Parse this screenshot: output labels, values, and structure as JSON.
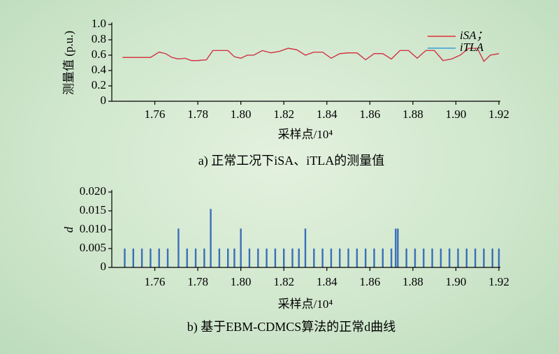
{
  "chart_data": [
    {
      "type": "line",
      "ylabel": "测量值 (p.u.)",
      "xlabel": "采样点/10⁴",
      "caption": "a) 正常工况下iSA、iTLA的测量值",
      "xlim": [
        1.74,
        1.92
      ],
      "ylim": [
        0,
        1
      ],
      "xticks": [
        1.76,
        1.78,
        {
          "value": 1.8,
          "label": "1.80"
        },
        1.82,
        1.84,
        1.86,
        1.88,
        {
          "value": 1.9,
          "label": "1.90"
        },
        1.92
      ],
      "yticks": [
        0,
        0.2,
        0.4,
        0.6,
        0.8,
        {
          "value": 1,
          "label": "1.0"
        }
      ],
      "legend": "upper right",
      "x": [
        1.745,
        1.75,
        1.755,
        1.758,
        1.762,
        1.765,
        1.768,
        1.771,
        1.774,
        1.777,
        1.78,
        1.784,
        1.787,
        1.79,
        1.794,
        1.797,
        1.8,
        1.803,
        1.806,
        1.81,
        1.814,
        1.818,
        1.822,
        1.826,
        1.83,
        1.834,
        1.838,
        1.842,
        1.846,
        1.85,
        1.854,
        1.858,
        1.862,
        1.866,
        1.87,
        1.874,
        1.878,
        1.882,
        1.886,
        1.89,
        1.894,
        1.898,
        1.902,
        1.906,
        1.91,
        1.913,
        1.916,
        1.92
      ],
      "series": [
        {
          "name": "iSA；",
          "color": "#e0303a",
          "values": [
            0.57,
            0.57,
            0.57,
            0.57,
            0.64,
            0.62,
            0.57,
            0.55,
            0.56,
            0.53,
            0.53,
            0.54,
            0.66,
            0.66,
            0.66,
            0.58,
            0.56,
            0.6,
            0.6,
            0.66,
            0.63,
            0.65,
            0.69,
            0.67,
            0.6,
            0.64,
            0.64,
            0.56,
            0.62,
            0.63,
            0.63,
            0.54,
            0.62,
            0.62,
            0.55,
            0.66,
            0.66,
            0.56,
            0.66,
            0.66,
            0.53,
            0.55,
            0.6,
            0.69,
            0.69,
            0.52,
            0.6,
            0.62
          ]
        },
        {
          "name": "iTLA",
          "color": "#3aa0d8",
          "values": [
            0.57,
            0.57,
            0.57,
            0.57,
            0.64,
            0.62,
            0.57,
            0.55,
            0.56,
            0.53,
            0.53,
            0.54,
            0.66,
            0.66,
            0.66,
            0.58,
            0.56,
            0.6,
            0.6,
            0.66,
            0.63,
            0.65,
            0.69,
            0.67,
            0.6,
            0.64,
            0.64,
            0.56,
            0.62,
            0.63,
            0.63,
            0.54,
            0.62,
            0.62,
            0.55,
            0.66,
            0.66,
            0.56,
            0.66,
            0.66,
            0.53,
            0.55,
            0.6,
            0.69,
            0.69,
            0.52,
            0.6,
            0.62
          ]
        }
      ]
    },
    {
      "type": "bar",
      "ylabel": "d",
      "xlabel": "采样点/10⁴",
      "caption": "b) 基于EBM-CDMCS算法的正常d曲线",
      "xlim": [
        1.74,
        1.92
      ],
      "ylim": [
        0,
        0.02
      ],
      "xticks": [
        1.76,
        1.78,
        {
          "value": 1.8,
          "label": "1.80"
        },
        1.82,
        1.84,
        1.86,
        1.88,
        {
          "value": 1.9,
          "label": "1.90"
        },
        1.92
      ],
      "yticks": [
        0,
        0.005,
        {
          "value": 0.01,
          "label": "0.010"
        },
        0.015,
        {
          "value": 0.02,
          "label": "0.020"
        }
      ],
      "color": "#3a6fb8",
      "x": [
        1.746,
        1.75,
        1.754,
        1.758,
        1.762,
        1.766,
        1.771,
        1.775,
        1.779,
        1.783,
        1.786,
        1.79,
        1.794,
        1.797,
        1.8,
        1.804,
        1.808,
        1.812,
        1.816,
        1.82,
        1.824,
        1.827,
        1.83,
        1.834,
        1.838,
        1.842,
        1.846,
        1.85,
        1.854,
        1.858,
        1.862,
        1.866,
        1.87,
        1.872,
        1.873,
        1.877,
        1.881,
        1.885,
        1.889,
        1.893,
        1.897,
        1.901,
        1.905,
        1.909,
        1.913,
        1.917,
        1.92
      ],
      "values": [
        0.005,
        0.005,
        0.005,
        0.005,
        0.005,
        0.005,
        0.0103,
        0.005,
        0.005,
        0.005,
        0.0155,
        0.005,
        0.005,
        0.005,
        0.0103,
        0.005,
        0.005,
        0.005,
        0.005,
        0.005,
        0.005,
        0.005,
        0.0103,
        0.005,
        0.005,
        0.005,
        0.005,
        0.005,
        0.005,
        0.005,
        0.005,
        0.005,
        0.005,
        0.0103,
        0.0103,
        0.005,
        0.005,
        0.005,
        0.005,
        0.005,
        0.005,
        0.005,
        0.005,
        0.005,
        0.005,
        0.005,
        0.005
      ]
    }
  ]
}
